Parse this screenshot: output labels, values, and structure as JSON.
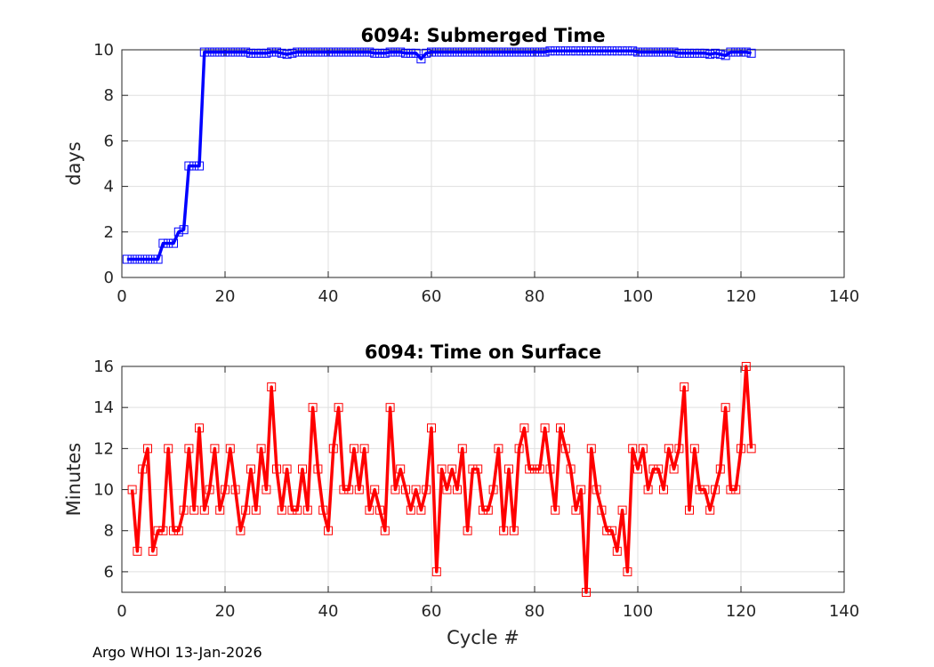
{
  "chart_data": [
    {
      "type": "line",
      "title": "6094: Submerged Time",
      "xlabel": "",
      "ylabel": "days",
      "xlim": [
        0,
        140
      ],
      "ylim": [
        0,
        10
      ],
      "xticks": [
        0,
        20,
        40,
        60,
        80,
        100,
        120,
        140
      ],
      "yticks": [
        0,
        2,
        4,
        6,
        8,
        10
      ],
      "grid": true,
      "color": "#0000ff",
      "marker": "square",
      "series": [
        {
          "name": "Submerged Time",
          "x": [
            1,
            2,
            3,
            4,
            5,
            6,
            7,
            8,
            9,
            10,
            11,
            12,
            13,
            14,
            15,
            16,
            17,
            18,
            19,
            20,
            21,
            22,
            23,
            24,
            25,
            26,
            27,
            28,
            29,
            30,
            31,
            32,
            33,
            34,
            35,
            36,
            37,
            38,
            39,
            40,
            41,
            42,
            43,
            44,
            45,
            46,
            47,
            48,
            49,
            50,
            51,
            52,
            53,
            54,
            55,
            56,
            57,
            58,
            59,
            60,
            61,
            62,
            63,
            64,
            65,
            66,
            67,
            68,
            69,
            70,
            71,
            72,
            73,
            74,
            75,
            76,
            77,
            78,
            79,
            80,
            81,
            82,
            83,
            84,
            85,
            86,
            87,
            88,
            89,
            90,
            91,
            92,
            93,
            94,
            95,
            96,
            97,
            98,
            99,
            100,
            101,
            102,
            103,
            104,
            105,
            106,
            107,
            108,
            109,
            110,
            111,
            112,
            113,
            114,
            115,
            116,
            117,
            118,
            119,
            120,
            121,
            122
          ],
          "values": [
            0.8,
            0.8,
            0.8,
            0.8,
            0.8,
            0.8,
            0.8,
            1.5,
            1.5,
            1.5,
            2.0,
            2.1,
            4.9,
            4.9,
            4.9,
            9.9,
            9.9,
            9.9,
            9.9,
            9.9,
            9.9,
            9.9,
            9.9,
            9.9,
            9.85,
            9.85,
            9.85,
            9.85,
            9.9,
            9.9,
            9.85,
            9.8,
            9.85,
            9.9,
            9.9,
            9.9,
            9.9,
            9.9,
            9.9,
            9.9,
            9.9,
            9.9,
            9.9,
            9.9,
            9.9,
            9.9,
            9.9,
            9.9,
            9.85,
            9.85,
            9.85,
            9.9,
            9.9,
            9.9,
            9.85,
            9.85,
            9.85,
            9.6,
            9.85,
            9.9,
            9.9,
            9.9,
            9.9,
            9.9,
            9.9,
            9.9,
            9.9,
            9.9,
            9.9,
            9.9,
            9.9,
            9.9,
            9.9,
            9.9,
            9.9,
            9.9,
            9.9,
            9.9,
            9.9,
            9.9,
            9.9,
            9.9,
            9.95,
            9.95,
            9.95,
            9.95,
            9.95,
            9.95,
            9.95,
            9.95,
            9.95,
            9.95,
            9.95,
            9.95,
            9.95,
            9.95,
            9.95,
            9.95,
            9.95,
            9.9,
            9.9,
            9.9,
            9.9,
            9.9,
            9.9,
            9.9,
            9.9,
            9.85,
            9.85,
            9.85,
            9.85,
            9.85,
            9.85,
            9.8,
            9.85,
            9.8,
            9.75,
            9.9,
            9.9,
            9.9,
            9.9,
            9.85
          ]
        }
      ]
    },
    {
      "type": "line",
      "title": "6094: Time on Surface",
      "xlabel": "Cycle #",
      "ylabel": "Minutes",
      "xlim": [
        0,
        140
      ],
      "ylim": [
        5,
        16
      ],
      "xticks": [
        0,
        20,
        40,
        60,
        80,
        100,
        120,
        140
      ],
      "yticks": [
        6,
        8,
        10,
        12,
        14,
        16
      ],
      "grid": true,
      "color": "#ff0000",
      "marker": "square",
      "series": [
        {
          "name": "Time on Surface",
          "x": [
            2,
            3,
            4,
            5,
            6,
            7,
            8,
            9,
            10,
            11,
            12,
            13,
            14,
            15,
            16,
            17,
            18,
            19,
            20,
            21,
            22,
            23,
            24,
            25,
            26,
            27,
            28,
            29,
            30,
            31,
            32,
            33,
            34,
            35,
            36,
            37,
            38,
            39,
            40,
            41,
            42,
            43,
            44,
            45,
            46,
            47,
            48,
            49,
            50,
            51,
            52,
            53,
            54,
            55,
            56,
            57,
            58,
            59,
            60,
            61,
            62,
            63,
            64,
            65,
            66,
            67,
            68,
            69,
            70,
            71,
            72,
            73,
            74,
            75,
            76,
            77,
            78,
            79,
            80,
            81,
            82,
            83,
            84,
            85,
            86,
            87,
            88,
            89,
            90,
            91,
            92,
            93,
            94,
            95,
            96,
            97,
            98,
            99,
            100,
            101,
            102,
            103,
            104,
            105,
            106,
            107,
            108,
            109,
            110,
            111,
            112,
            113,
            114,
            115,
            116,
            117,
            118,
            119,
            120,
            121,
            122
          ],
          "values": [
            10,
            7,
            11,
            12,
            7,
            8,
            8,
            12,
            8,
            8,
            9,
            12,
            9,
            13,
            9,
            10,
            12,
            9,
            10,
            12,
            10,
            8,
            9,
            11,
            9,
            12,
            10,
            15,
            11,
            9,
            11,
            9,
            9,
            11,
            9,
            14,
            11,
            9,
            8,
            12,
            14,
            10,
            10,
            12,
            10,
            12,
            9,
            10,
            9,
            8,
            14,
            10,
            11,
            10,
            9,
            10,
            9,
            10,
            13,
            6,
            11,
            10,
            11,
            10,
            12,
            8,
            11,
            11,
            9,
            9,
            10,
            12,
            8,
            11,
            8,
            12,
            13,
            11,
            11,
            11,
            13,
            11,
            9,
            13,
            12,
            11,
            9,
            10,
            5,
            12,
            10,
            9,
            8,
            8,
            7,
            9,
            6,
            12,
            11,
            12,
            10,
            11,
            11,
            10,
            12,
            11,
            12,
            15,
            9,
            12,
            10,
            10,
            9,
            10,
            11,
            14,
            10,
            10,
            12,
            16,
            12
          ]
        }
      ]
    }
  ],
  "footer": "Argo WHOI 13-Jan-2026"
}
